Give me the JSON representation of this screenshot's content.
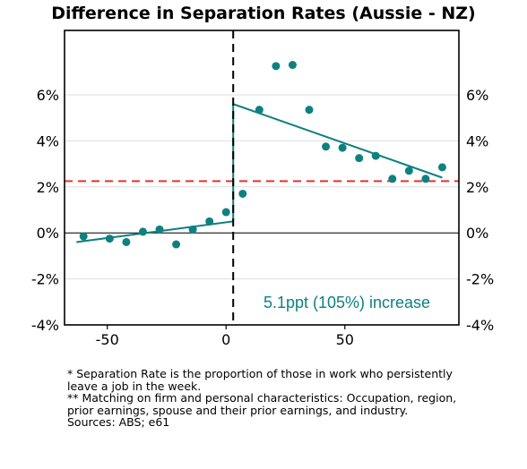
{
  "chart_data": {
    "type": "scatter",
    "title": "Difference in Separation Rates (Aussie - NZ)",
    "xlabel": "",
    "ylabel": "",
    "xlim": [
      -68,
      98
    ],
    "ylim": [
      -4,
      8.8
    ],
    "x_ticks": [
      -50,
      0,
      50
    ],
    "x_tick_labels": [
      "-50",
      "0",
      "50"
    ],
    "y_ticks": [
      -4,
      -2,
      0,
      2,
      4,
      6
    ],
    "y_tick_labels": [
      "-4%",
      "-2%",
      "0%",
      "2%",
      "4%",
      "6%"
    ],
    "grid": true,
    "colors": {
      "points": "#0f8080",
      "fit": "#0f8080",
      "zero_line": "#000000",
      "reference_line": "#e8312f",
      "cutoff_line": "#000000"
    },
    "series": [
      {
        "points": [
          {
            "x": -60,
            "y": -0.15
          },
          {
            "x": -49,
            "y": -0.25
          },
          {
            "x": -42,
            "y": -0.4
          },
          {
            "x": -35,
            "y": 0.05
          },
          {
            "x": -28,
            "y": 0.15
          },
          {
            "x": -21,
            "y": -0.5
          },
          {
            "x": -14,
            "y": 0.15
          },
          {
            "x": -7,
            "y": 0.5
          },
          {
            "x": 0,
            "y": 0.9
          },
          {
            "x": 7,
            "y": 1.7
          },
          {
            "x": 14,
            "y": 5.35
          },
          {
            "x": 21,
            "y": 7.25
          },
          {
            "x": 28,
            "y": 7.3
          },
          {
            "x": 35,
            "y": 5.35
          },
          {
            "x": 42,
            "y": 3.75
          },
          {
            "x": 49,
            "y": 3.7
          },
          {
            "x": 56,
            "y": 3.25
          },
          {
            "x": 63,
            "y": 3.35
          },
          {
            "x": 70,
            "y": 2.35
          },
          {
            "x": 77,
            "y": 2.7
          },
          {
            "x": 84,
            "y": 2.35
          },
          {
            "x": 91,
            "y": 2.85
          }
        ]
      }
    ],
    "fit_lines": [
      {
        "x": [
          -63,
          3
        ],
        "y": [
          -0.4,
          0.5
        ]
      },
      {
        "x": [
          3,
          91
        ],
        "y": [
          5.6,
          2.4
        ]
      }
    ],
    "cutoff_x": 3,
    "reference_y": 2.25,
    "annotation": "5.1ppt (105%) increase"
  },
  "notes": [
    "* Separation Rate is the proportion of those in work who persistently leave a job in the week.",
    "** Matching on firm and personal characteristics: Occupation, region, prior earnings, spouse and their prior earnings, and industry.",
    "Sources: ABS; e61"
  ]
}
